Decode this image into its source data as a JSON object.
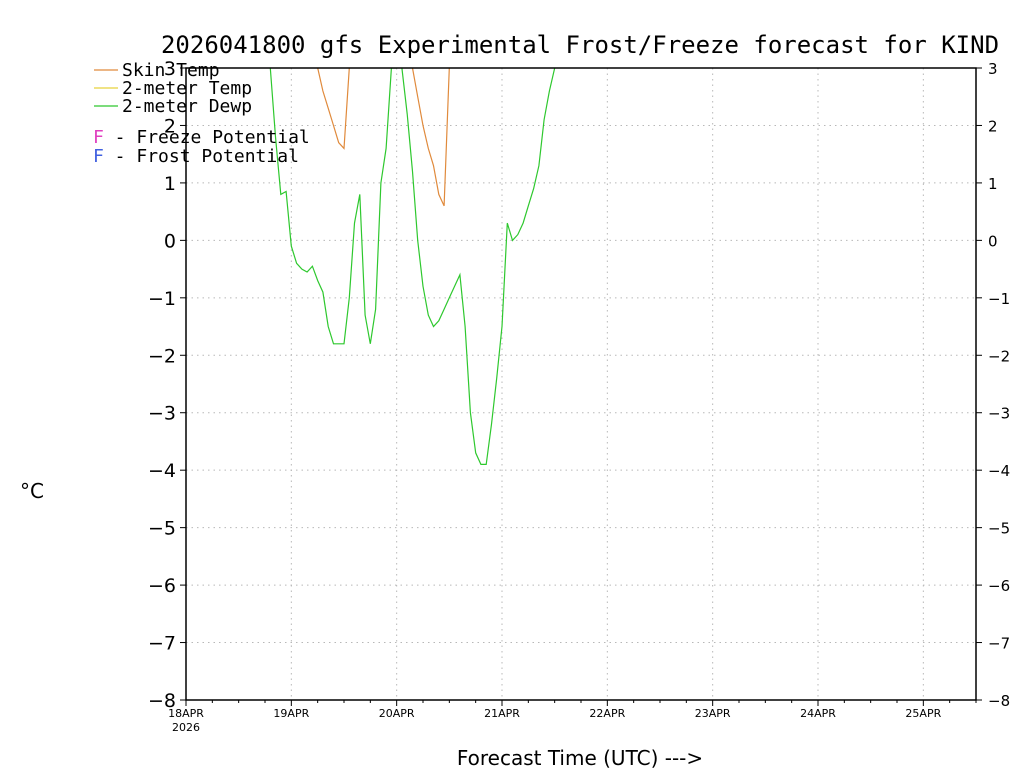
{
  "chart_data": {
    "type": "line",
    "title": "2026041800 gfs Experimental Frost/Freeze forecast for KIND",
    "xlabel": "Forecast Time (UTC) --->",
    "ylabel": "°C",
    "ylim": [
      -8,
      3
    ],
    "yticks": [
      3,
      2,
      1,
      0,
      -1,
      -2,
      -3,
      -4,
      -5,
      -6,
      -7,
      -8
    ],
    "ytick_labels": [
      "3",
      "2",
      "1",
      "0",
      "−1",
      "−2",
      "−3",
      "−4",
      "−5",
      "−6",
      "−7",
      "−8"
    ],
    "xlim_days": [
      0,
      7.5
    ],
    "xticks": [
      {
        "day": 0,
        "label": "18APR",
        "sublabel": "2026"
      },
      {
        "day": 1,
        "label": "19APR"
      },
      {
        "day": 2,
        "label": "20APR"
      },
      {
        "day": 3,
        "label": "21APR"
      },
      {
        "day": 4,
        "label": "22APR"
      },
      {
        "day": 5,
        "label": "23APR"
      },
      {
        "day": 6,
        "label": "24APR"
      },
      {
        "day": 7,
        "label": "25APR"
      }
    ],
    "grid": true,
    "series": [
      {
        "name": "Skin Temp",
        "color": "#e08a3c",
        "segments": [
          {
            "x": [
              1.25,
              1.3,
              1.35,
              1.4,
              1.45,
              1.5,
              1.55
            ],
            "y": [
              3.0,
              2.6,
              2.3,
              2.0,
              1.7,
              1.6,
              3.0
            ]
          },
          {
            "x": [
              2.15,
              2.2,
              2.25,
              2.3,
              2.35,
              2.4,
              2.45,
              2.5
            ],
            "y": [
              3.0,
              2.5,
              2.0,
              1.6,
              1.3,
              0.8,
              0.6,
              3.0
            ]
          }
        ]
      },
      {
        "name": "2-meter Temp",
        "color": "#e8d23c",
        "segments": []
      },
      {
        "name": "2-meter Dewp",
        "color": "#2ec82e",
        "segments": [
          {
            "x": [
              0.8,
              0.85,
              0.9,
              0.95,
              1.0,
              1.05,
              1.1,
              1.15,
              1.2,
              1.25,
              1.3,
              1.35,
              1.4,
              1.45,
              1.5,
              1.55,
              1.6,
              1.65,
              1.7,
              1.75,
              1.8,
              1.85,
              1.9,
              1.95,
              2.0
            ],
            "y": [
              3.0,
              1.8,
              0.8,
              0.85,
              -0.1,
              -0.4,
              -0.5,
              -0.55,
              -0.45,
              -0.7,
              -0.9,
              -1.5,
              -1.8,
              -1.8,
              -1.8,
              -1.0,
              0.3,
              0.8,
              -1.3,
              -1.8,
              -1.2,
              1.0,
              1.6,
              3.0,
              3.0
            ]
          },
          {
            "x": [
              2.05,
              2.1,
              2.15,
              2.2,
              2.25,
              2.3,
              2.35,
              2.4,
              2.45,
              2.5,
              2.55,
              2.6,
              2.65,
              2.7,
              2.75,
              2.8,
              2.85,
              2.9,
              2.95,
              3.0,
              3.05,
              3.1,
              3.15,
              3.2,
              3.25,
              3.3,
              3.35,
              3.4,
              3.45,
              3.5
            ],
            "y": [
              3.0,
              2.2,
              1.2,
              0.0,
              -0.8,
              -1.3,
              -1.5,
              -1.4,
              -1.2,
              -1.0,
              -0.8,
              -0.6,
              -1.5,
              -3.0,
              -3.7,
              -3.9,
              -3.9,
              -3.2,
              -2.4,
              -1.5,
              0.3,
              0.0,
              0.1,
              0.3,
              0.6,
              0.9,
              1.3,
              2.1,
              2.6,
              3.0
            ]
          }
        ]
      }
    ],
    "legend": {
      "placement": "top-left",
      "entries": [
        {
          "label": "Skin Temp",
          "color": "#e08a3c"
        },
        {
          "label": "2-meter Temp",
          "color": "#e8d23c"
        },
        {
          "label": "2-meter Dewp",
          "color": "#2ec82e"
        }
      ],
      "potential_entries": [
        {
          "symbol": "F",
          "label": " - Freeze Potential",
          "symbol_color": "#e040c0"
        },
        {
          "symbol": "F",
          "label": " - Frost Potential",
          "symbol_color": "#4060e0"
        }
      ]
    }
  }
}
